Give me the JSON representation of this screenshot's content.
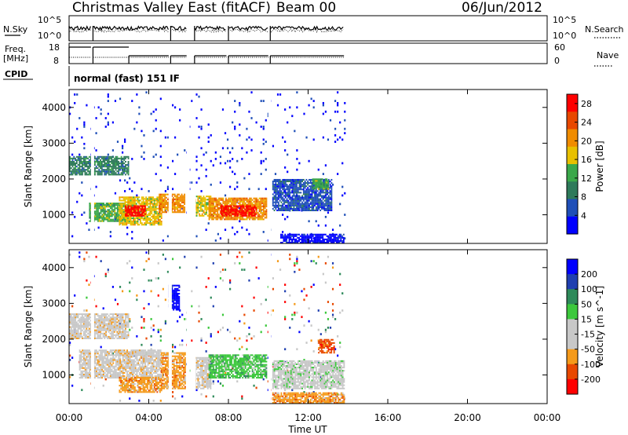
{
  "header": {
    "title": "Christmas Valley East (fitACF)",
    "beam": "Beam 00",
    "date": "06/Jun/2012"
  },
  "noise_panel": {
    "left_label": "N.Sky",
    "left_ticks": [
      "10^5",
      "10^0"
    ],
    "right_ticks": [
      "10^5",
      "10^0"
    ],
    "right_label": "N.Search"
  },
  "freq_panel": {
    "left_label_1": "Freq.",
    "left_label_2": "[MHz]",
    "left_ticks": [
      "18",
      "8"
    ],
    "right_ticks": [
      "60",
      "0"
    ],
    "right_label": "Nave"
  },
  "cpid": {
    "label": "CPID",
    "value": "normal (fast) 151 IF"
  },
  "x_axis": {
    "label": "Time UT",
    "ticks": [
      "00:00",
      "04:00",
      "08:00",
      "12:00",
      "16:00",
      "20:00",
      "00:00"
    ]
  },
  "colors": {
    "power": [
      "#0000ff",
      "#1f4fb8",
      "#2e7a5a",
      "#3aa84a",
      "#e8c000",
      "#f08c00",
      "#e84800",
      "#ff0000"
    ],
    "velocity": [
      "#ff0000",
      "#e84800",
      "#f59a1a",
      "#c8c8c8",
      "#c8c8c8",
      "#3cc83c",
      "#2e8a5a",
      "#1f3fb0",
      "#0000ff"
    ]
  },
  "chart_data": [
    {
      "type": "heatmap",
      "title": "",
      "xlabel": "",
      "ylabel": "Slant Range [km]",
      "xlim": [
        0,
        24
      ],
      "ylim": [
        200,
        4500
      ],
      "y_ticks": [
        "1000",
        "2000",
        "3000",
        "4000"
      ],
      "colorbar": {
        "label": "Power [dB]",
        "ticks": [
          "4",
          "8",
          "12",
          "16",
          "20",
          "24",
          "28"
        ],
        "range": [
          0,
          30
        ]
      },
      "data_extent_hours": [
        0,
        13.8
      ],
      "regions": [
        {
          "t0": 0.0,
          "t1": 3.0,
          "r0": 2100,
          "r1": 2600,
          "level": 2
        },
        {
          "t0": 1.0,
          "t1": 3.0,
          "r0": 800,
          "r1": 1300,
          "level": 3
        },
        {
          "t0": 2.5,
          "t1": 4.6,
          "r0": 700,
          "r1": 1500,
          "level": 4
        },
        {
          "t0": 2.8,
          "t1": 3.8,
          "r0": 950,
          "r1": 1250,
          "level": 7
        },
        {
          "t0": 4.5,
          "t1": 5.8,
          "r0": 1050,
          "r1": 1550,
          "level": 5
        },
        {
          "t0": 6.3,
          "t1": 7.1,
          "r0": 950,
          "r1": 1500,
          "level": 4
        },
        {
          "t0": 7.0,
          "t1": 9.9,
          "r0": 850,
          "r1": 1450,
          "level": 5
        },
        {
          "t0": 7.6,
          "t1": 9.4,
          "r0": 950,
          "r1": 1250,
          "level": 7
        },
        {
          "t0": 10.2,
          "t1": 13.2,
          "r0": 1100,
          "r1": 2000,
          "level": 1
        },
        {
          "t0": 12.2,
          "t1": 13.0,
          "r0": 1700,
          "r1": 2000,
          "level": 3
        },
        {
          "t0": 10.6,
          "t1": 13.8,
          "r0": 200,
          "r1": 450,
          "level": 0
        }
      ]
    },
    {
      "type": "heatmap",
      "title": "",
      "xlabel": "Time UT",
      "ylabel": "Slant Range [km]",
      "xlim": [
        0,
        24
      ],
      "ylim": [
        200,
        4500
      ],
      "y_ticks": [
        "1000",
        "2000",
        "3000",
        "4000"
      ],
      "colorbar": {
        "label": "Velocity [m s^-1]",
        "ticks": [
          "200",
          "100",
          "50",
          "15",
          "-15",
          "-50",
          "-100",
          "-200"
        ],
        "range": [
          -250,
          250
        ]
      },
      "data_extent_hours": [
        0,
        13.8
      ],
      "regions": [
        {
          "t0": 0.0,
          "t1": 3.0,
          "r0": 2000,
          "r1": 2700,
          "level": 3
        },
        {
          "t0": 0.5,
          "t1": 4.6,
          "r0": 900,
          "r1": 1700,
          "level": 3
        },
        {
          "t0": 2.5,
          "t1": 4.6,
          "r0": 500,
          "r1": 950,
          "level": 2
        },
        {
          "t0": 4.6,
          "t1": 5.8,
          "r0": 600,
          "r1": 1600,
          "level": 2
        },
        {
          "t0": 5.0,
          "t1": 5.5,
          "r0": 2800,
          "r1": 3500,
          "level": 8
        },
        {
          "t0": 6.3,
          "t1": 7.1,
          "r0": 600,
          "r1": 1500,
          "level": 3
        },
        {
          "t0": 7.0,
          "t1": 9.9,
          "r0": 900,
          "r1": 1550,
          "level": 5
        },
        {
          "t0": 10.2,
          "t1": 13.8,
          "r0": 600,
          "r1": 1400,
          "level": 4
        },
        {
          "t0": 10.2,
          "t1": 13.8,
          "r0": 200,
          "r1": 500,
          "level": 2
        },
        {
          "t0": 12.5,
          "t1": 13.3,
          "r0": 1600,
          "r1": 2000,
          "level": 1
        }
      ]
    }
  ]
}
